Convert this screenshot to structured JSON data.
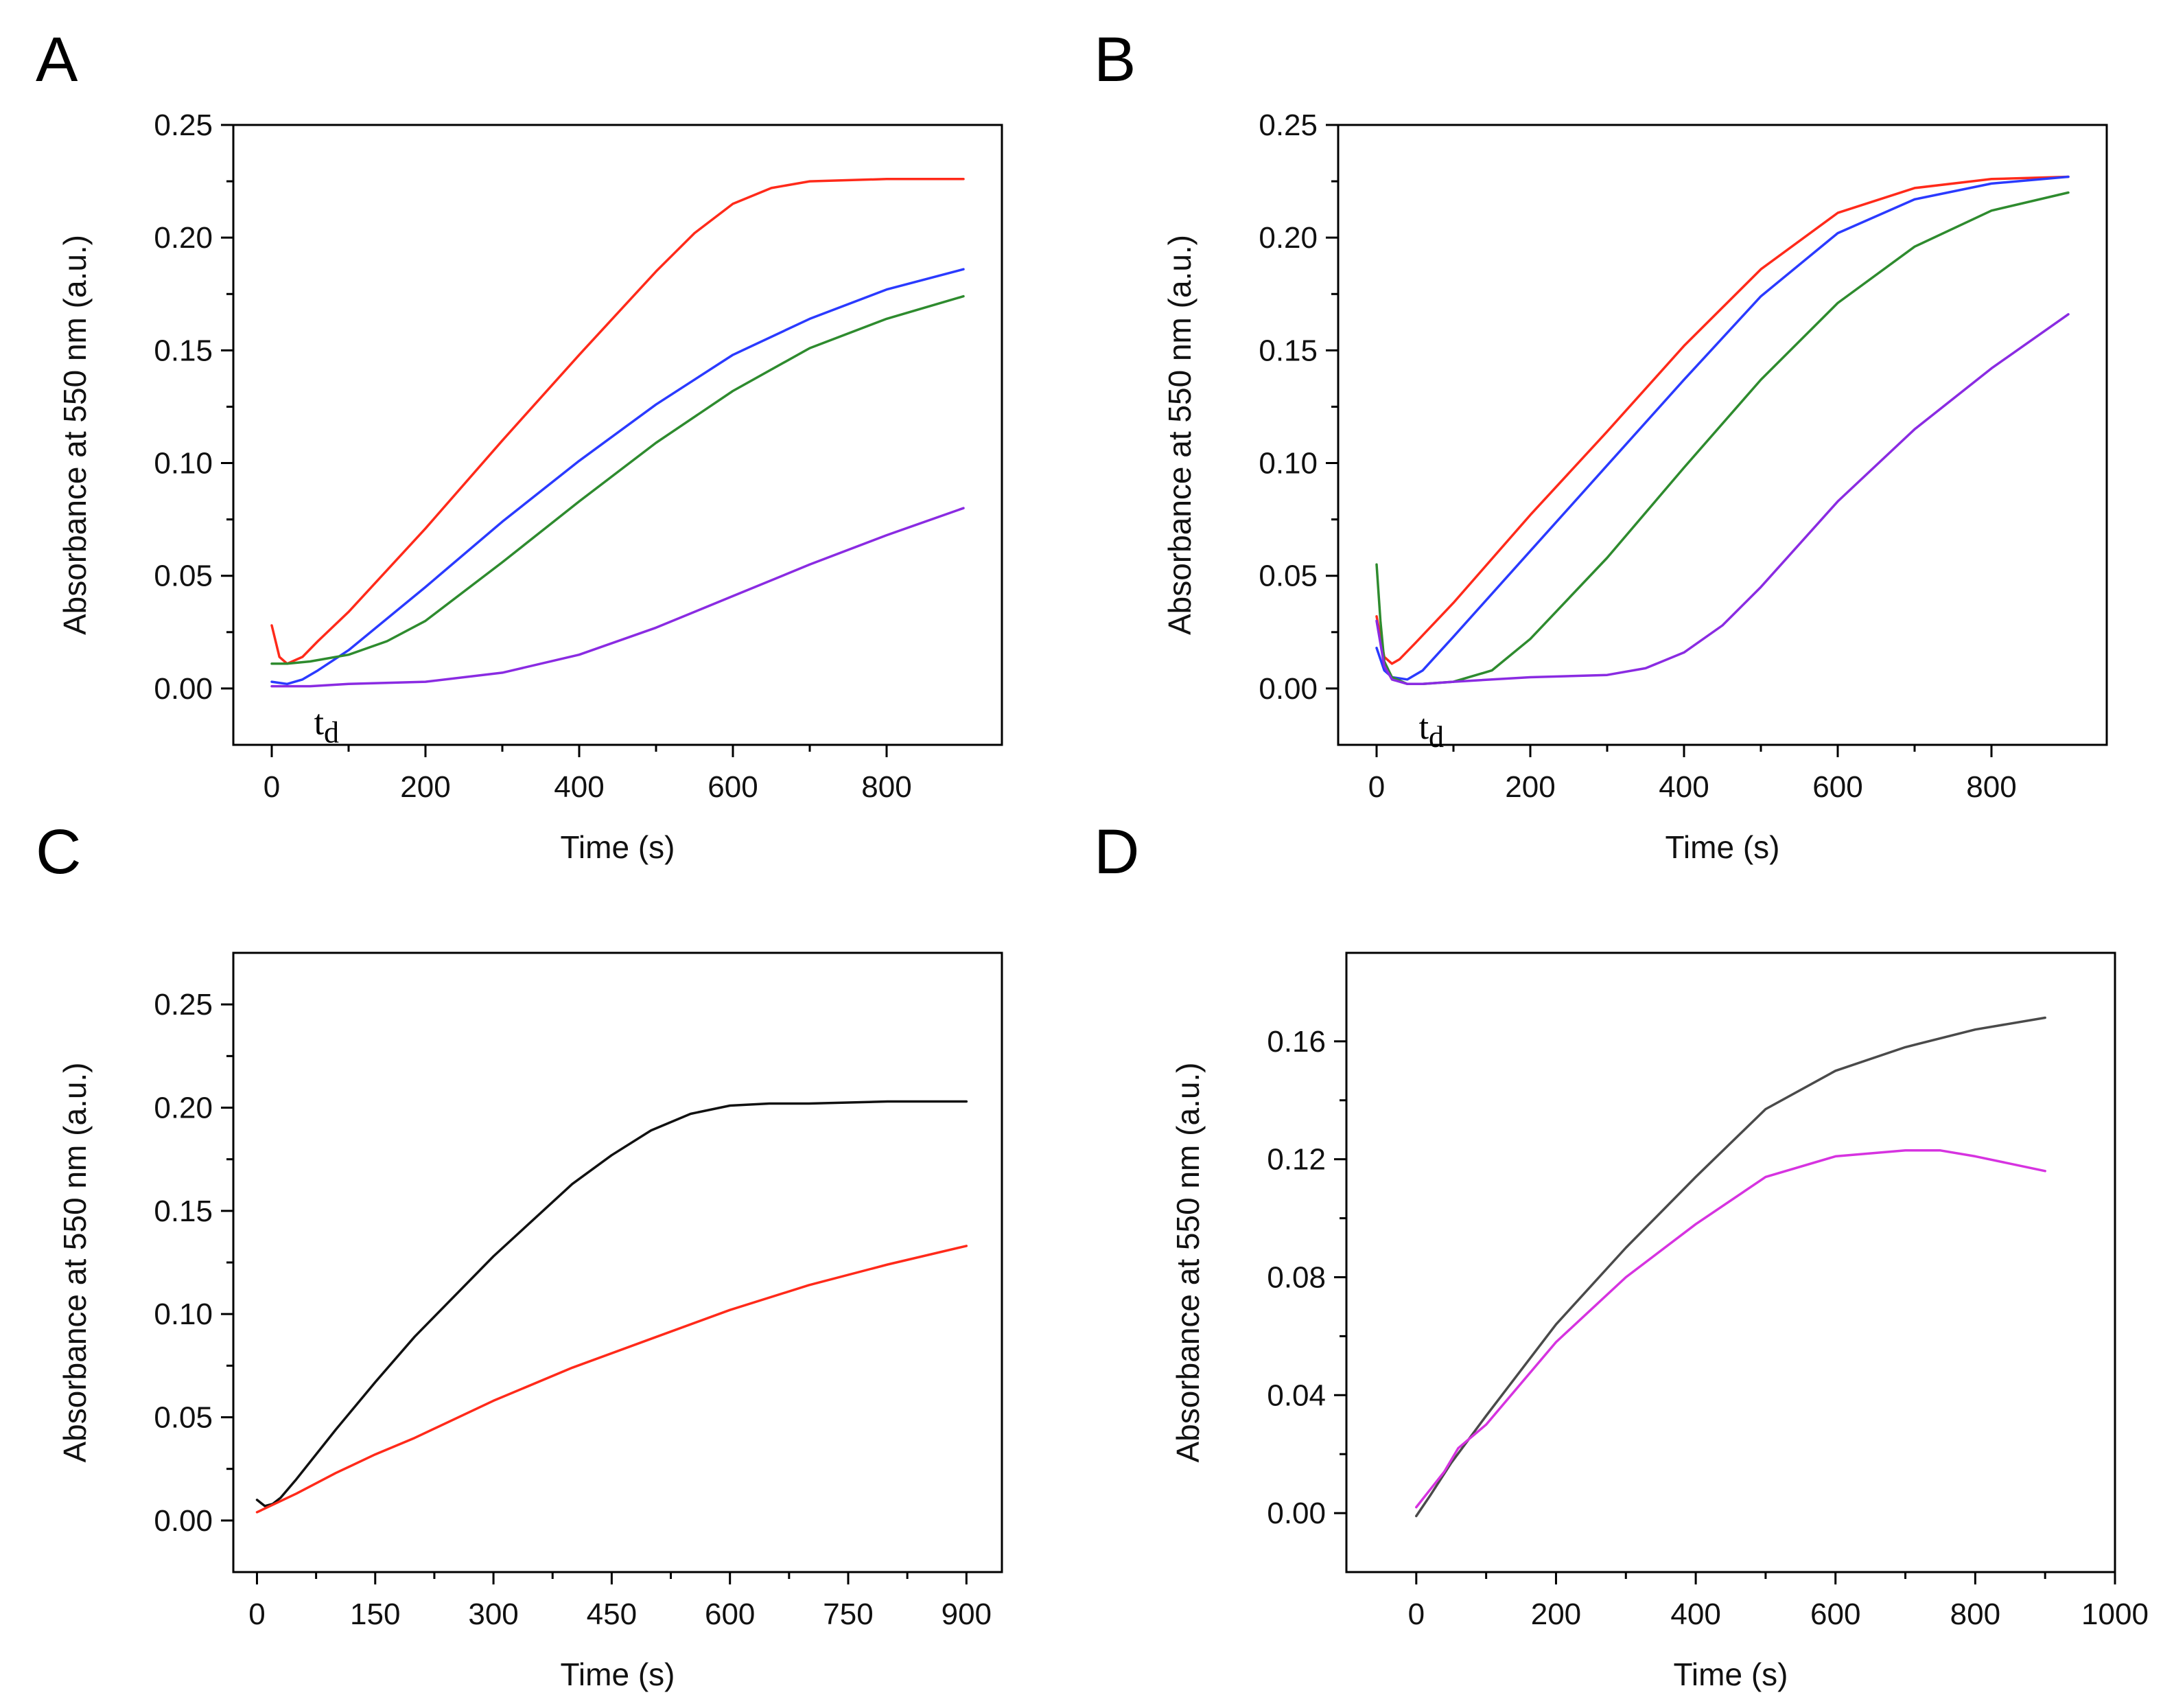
{
  "figure": {
    "panels": [
      "A",
      "B",
      "C",
      "D"
    ]
  },
  "chart_data": [
    {
      "panel": "A",
      "type": "line",
      "xlabel": "Time (s)",
      "ylabel": "Absorbance at 550 nm (a.u.)",
      "xlim": [
        -50,
        950
      ],
      "ylim": [
        -0.025,
        0.25
      ],
      "xticks": [
        0,
        200,
        400,
        600,
        800
      ],
      "xtick_labels": [
        "0",
        "200",
        "400",
        "600",
        "800"
      ],
      "yticks": [
        0,
        0.05,
        0.1,
        0.15,
        0.2,
        0.25
      ],
      "ytick_labels": [
        "0.00",
        "0.05",
        "0.10",
        "0.15",
        "0.20",
        "0.25"
      ],
      "annotation": {
        "text": "t",
        "sub": "d",
        "x": 55,
        "y": -0.013
      },
      "series": [
        {
          "name": "red",
          "color": "#ff2a1a",
          "x": [
            0,
            10,
            20,
            40,
            60,
            100,
            200,
            300,
            400,
            500,
            550,
            600,
            650,
            700,
            800,
            900
          ],
          "y": [
            0.028,
            0.014,
            0.011,
            0.014,
            0.021,
            0.034,
            0.071,
            0.11,
            0.148,
            0.185,
            0.202,
            0.215,
            0.222,
            0.225,
            0.226,
            0.226
          ]
        },
        {
          "name": "blue",
          "color": "#2a3aff",
          "x": [
            0,
            20,
            40,
            60,
            100,
            200,
            300,
            400,
            500,
            600,
            700,
            800,
            900
          ],
          "y": [
            0.003,
            0.002,
            0.004,
            0.008,
            0.017,
            0.045,
            0.074,
            0.101,
            0.126,
            0.148,
            0.164,
            0.177,
            0.186
          ]
        },
        {
          "name": "green",
          "color": "#2e8b2e",
          "x": [
            0,
            20,
            50,
            100,
            150,
            200,
            300,
            400,
            500,
            600,
            700,
            800,
            900
          ],
          "y": [
            0.011,
            0.011,
            0.012,
            0.015,
            0.021,
            0.03,
            0.056,
            0.083,
            0.109,
            0.132,
            0.151,
            0.164,
            0.174
          ]
        },
        {
          "name": "purple",
          "color": "#8a2be2",
          "x": [
            0,
            50,
            100,
            200,
            300,
            400,
            500,
            600,
            700,
            800,
            900
          ],
          "y": [
            0.001,
            0.001,
            0.002,
            0.003,
            0.007,
            0.015,
            0.027,
            0.041,
            0.055,
            0.068,
            0.08
          ]
        }
      ]
    },
    {
      "panel": "B",
      "type": "line",
      "xlabel": "Time (s)",
      "ylabel": "Absorbance at 550 nm (a.u.)",
      "xlim": [
        -50,
        950
      ],
      "ylim": [
        -0.025,
        0.25
      ],
      "xticks": [
        0,
        200,
        400,
        600,
        800
      ],
      "xtick_labels": [
        "0",
        "200",
        "400",
        "600",
        "800"
      ],
      "yticks": [
        0,
        0.05,
        0.1,
        0.15,
        0.2,
        0.25
      ],
      "ytick_labels": [
        "0.00",
        "0.05",
        "0.10",
        "0.15",
        "0.20",
        "0.25"
      ],
      "annotation": {
        "text": "t",
        "sub": "d",
        "x": 55,
        "y": -0.015
      },
      "series": [
        {
          "name": "red",
          "color": "#ff2a1a",
          "x": [
            0,
            10,
            20,
            30,
            50,
            100,
            200,
            300,
            400,
            500,
            600,
            700,
            800,
            900
          ],
          "y": [
            0.032,
            0.014,
            0.011,
            0.013,
            0.02,
            0.038,
            0.077,
            0.114,
            0.152,
            0.186,
            0.211,
            0.222,
            0.226,
            0.227
          ]
        },
        {
          "name": "blue",
          "color": "#2a3aff",
          "x": [
            0,
            10,
            20,
            40,
            60,
            100,
            200,
            300,
            400,
            500,
            600,
            700,
            800,
            900
          ],
          "y": [
            0.018,
            0.008,
            0.005,
            0.004,
            0.008,
            0.023,
            0.061,
            0.099,
            0.137,
            0.174,
            0.202,
            0.217,
            0.224,
            0.227
          ]
        },
        {
          "name": "green",
          "color": "#2e8b2e",
          "x": [
            0,
            5,
            10,
            20,
            40,
            60,
            100,
            150,
            200,
            300,
            400,
            500,
            600,
            700,
            800,
            900
          ],
          "y": [
            0.055,
            0.03,
            0.012,
            0.005,
            0.002,
            0.002,
            0.003,
            0.008,
            0.022,
            0.058,
            0.098,
            0.137,
            0.171,
            0.196,
            0.212,
            0.22
          ]
        },
        {
          "name": "purple",
          "color": "#8a2be2",
          "x": [
            0,
            10,
            20,
            40,
            60,
            100,
            200,
            300,
            350,
            400,
            450,
            500,
            600,
            700,
            800,
            900
          ],
          "y": [
            0.03,
            0.01,
            0.004,
            0.002,
            0.002,
            0.003,
            0.005,
            0.006,
            0.009,
            0.016,
            0.028,
            0.045,
            0.083,
            0.115,
            0.142,
            0.166
          ]
        }
      ]
    },
    {
      "panel": "C",
      "type": "line",
      "xlabel": "Time (s)",
      "ylabel": "Absorbance at 550 nm (a.u.)",
      "xlim": [
        -30,
        945
      ],
      "ylim": [
        -0.025,
        0.275
      ],
      "xticks": [
        0,
        150,
        300,
        450,
        600,
        750,
        900
      ],
      "xtick_labels": [
        "0",
        "150",
        "300",
        "450",
        "600",
        "750",
        "900"
      ],
      "yticks": [
        0,
        0.05,
        0.1,
        0.15,
        0.2,
        0.25
      ],
      "ytick_labels": [
        "0.00",
        "0.05",
        "0.10",
        "0.15",
        "0.20",
        "0.25"
      ],
      "series": [
        {
          "name": "black",
          "color": "#111111",
          "x": [
            0,
            10,
            20,
            30,
            50,
            100,
            150,
            200,
            300,
            400,
            450,
            500,
            550,
            600,
            650,
            700,
            800,
            900
          ],
          "y": [
            0.01,
            0.007,
            0.008,
            0.011,
            0.02,
            0.044,
            0.067,
            0.089,
            0.128,
            0.163,
            0.177,
            0.189,
            0.197,
            0.201,
            0.202,
            0.202,
            0.203,
            0.203
          ]
        },
        {
          "name": "red",
          "color": "#ff2a1a",
          "x": [
            0,
            50,
            100,
            150,
            200,
            300,
            400,
            500,
            600,
            700,
            800,
            900
          ],
          "y": [
            0.004,
            0.013,
            0.023,
            0.032,
            0.04,
            0.058,
            0.074,
            0.088,
            0.102,
            0.114,
            0.124,
            0.133
          ]
        }
      ]
    },
    {
      "panel": "D",
      "type": "line",
      "xlabel": "Time (s)",
      "ylabel": "Absorbance at 550 nm (a.u.)",
      "xlim": [
        -100,
        1000
      ],
      "ylim": [
        -0.02,
        0.19
      ],
      "xticks": [
        0,
        200,
        400,
        600,
        800,
        1000
      ],
      "xtick_labels": [
        "0",
        "200",
        "400",
        "600",
        "800",
        "1000"
      ],
      "yticks": [
        0,
        0.04,
        0.08,
        0.12,
        0.16
      ],
      "ytick_labels": [
        "0.00",
        "0.04",
        "0.08",
        "0.12",
        "0.16"
      ],
      "series": [
        {
          "name": "gray",
          "color": "#4a4a4a",
          "x": [
            0,
            20,
            50,
            100,
            200,
            300,
            400,
            500,
            600,
            700,
            800,
            900
          ],
          "y": [
            -0.001,
            0.006,
            0.017,
            0.033,
            0.064,
            0.09,
            0.114,
            0.137,
            0.15,
            0.158,
            0.164,
            0.168
          ]
        },
        {
          "name": "magenta",
          "color": "#d633e0",
          "x": [
            0,
            20,
            40,
            60,
            100,
            200,
            300,
            400,
            500,
            600,
            700,
            750,
            800,
            900
          ],
          "y": [
            0.002,
            0.008,
            0.014,
            0.022,
            0.03,
            0.058,
            0.08,
            0.098,
            0.114,
            0.121,
            0.123,
            0.123,
            0.121,
            0.116
          ]
        }
      ]
    }
  ]
}
